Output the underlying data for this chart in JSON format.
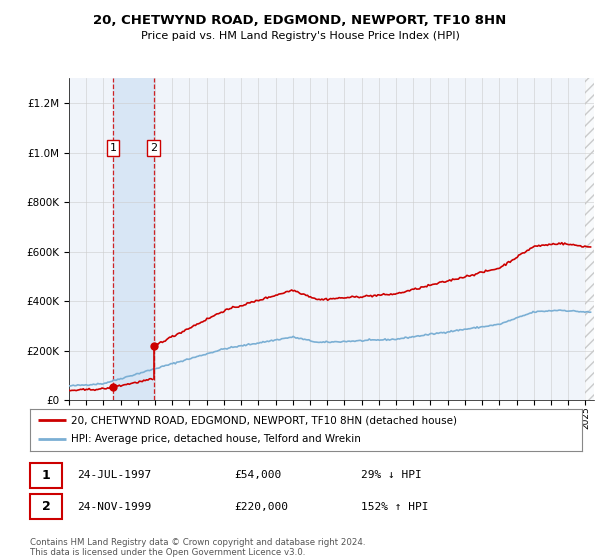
{
  "title": "20, CHETWYND ROAD, EDGMOND, NEWPORT, TF10 8HN",
  "subtitle": "Price paid vs. HM Land Registry's House Price Index (HPI)",
  "legend_line1": "20, CHETWYND ROAD, EDGMOND, NEWPORT, TF10 8HN (detached house)",
  "legend_line2": "HPI: Average price, detached house, Telford and Wrekin",
  "sale1_date": "24-JUL-1997",
  "sale1_price": "£54,000",
  "sale1_hpi": "29% ↓ HPI",
  "sale2_date": "24-NOV-1999",
  "sale2_price": "£220,000",
  "sale2_hpi": "152% ↑ HPI",
  "footer": "Contains HM Land Registry data © Crown copyright and database right 2024.\nThis data is licensed under the Open Government Licence v3.0.",
  "house_color": "#cc0000",
  "hpi_color": "#7bafd4",
  "sale1_year": 1997.55,
  "sale1_value": 54000,
  "sale2_year": 1999.92,
  "sale2_value": 220000,
  "bg_color": "#ffffff",
  "plot_bg": "#f0f4fa",
  "grid_color": "#cccccc",
  "shade_color": "#d8e6f5",
  "ylim": [
    0,
    1300000
  ],
  "xlim_start": 1995.0,
  "xlim_end": 2025.5
}
